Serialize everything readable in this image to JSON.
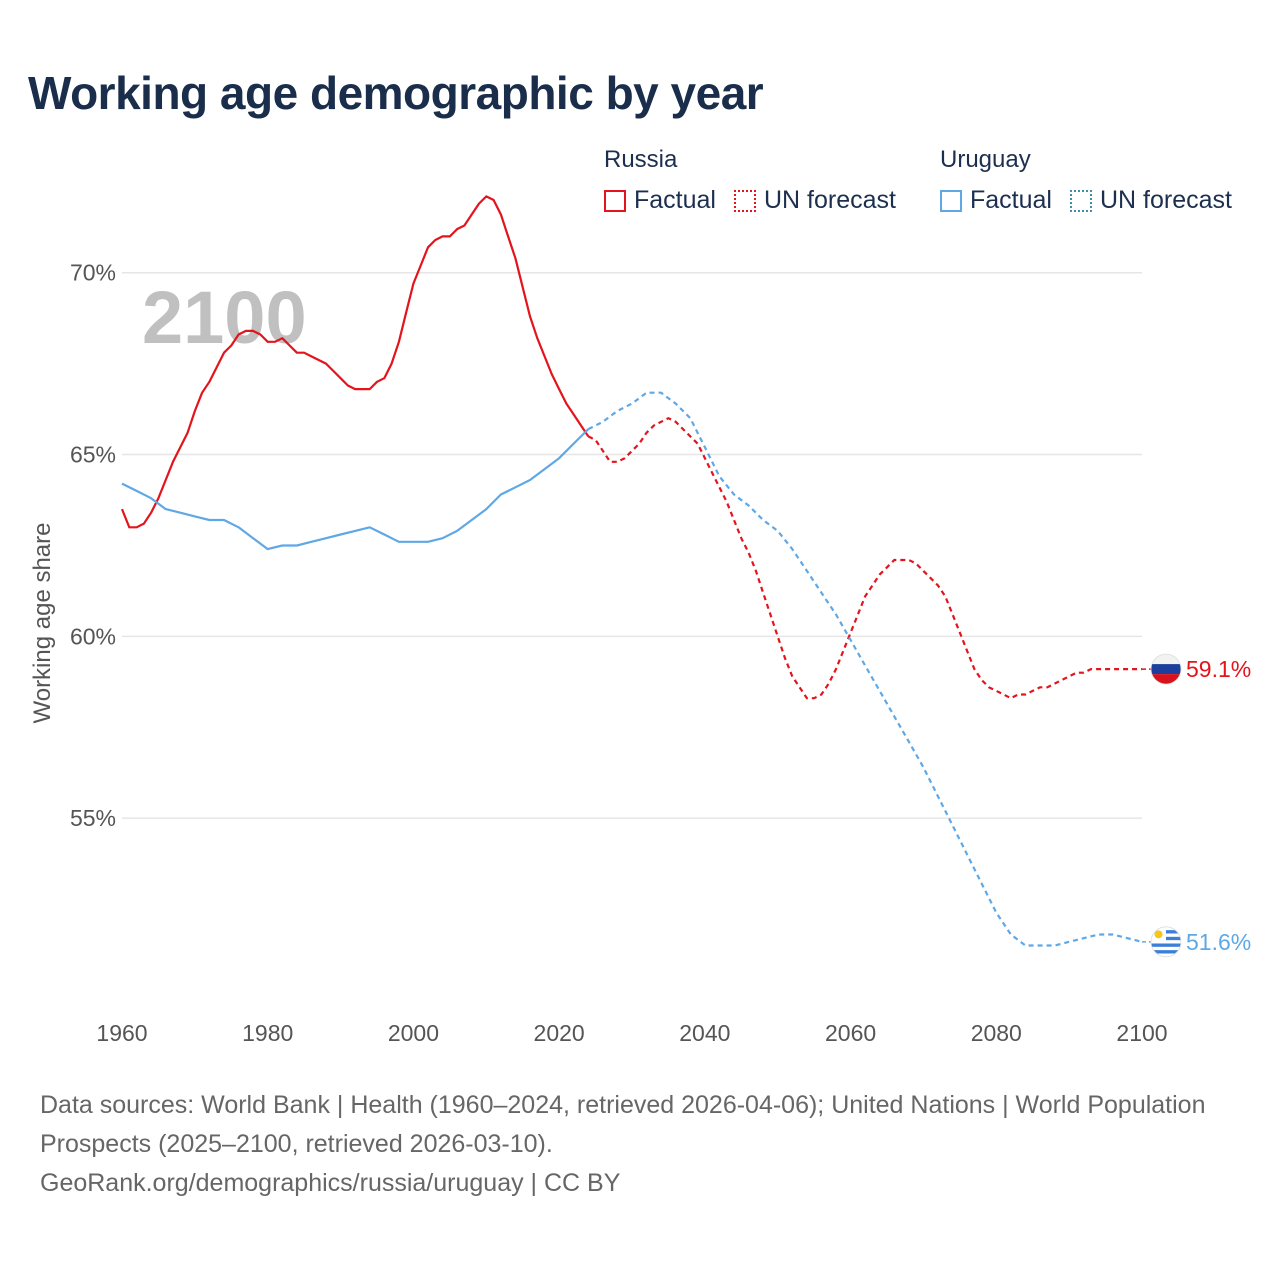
{
  "title": "Working age demographic by year",
  "legend": {
    "groups": [
      {
        "name": "Russia",
        "factual": "Factual",
        "forecast": "UN forecast"
      },
      {
        "name": "Uruguay",
        "factual": "Factual",
        "forecast": "UN forecast"
      }
    ]
  },
  "source": {
    "line1": "Data sources: World Bank | Health (1960–2024, retrieved 2026-04-06); United Nations | World Population Prospects (2025–2100, retrieved 2026-03-10).",
    "line2": "GeoRank.org/demographics/russia/uruguay | CC BY"
  },
  "colors": {
    "russia": "#e3141c",
    "uruguay": "#5fa8e6",
    "grid": "#e6e6e6",
    "year_watermark": "#c0c0c0"
  },
  "chart_data": {
    "type": "line",
    "title": "Working age demographic by year",
    "ylabel": "Working age share",
    "xlabel": "",
    "year_label": "2100",
    "xlim": [
      1960,
      2100
    ],
    "ylim": [
      50,
      72
    ],
    "x_ticks": [
      1960,
      1980,
      2000,
      2020,
      2040,
      2060,
      2080,
      2100
    ],
    "x_tick_labels": [
      "1960",
      "1980",
      "2000",
      "2020",
      "2040",
      "2060",
      "2080",
      "2100"
    ],
    "y_ticks": [
      55,
      60,
      65,
      70
    ],
    "y_tick_labels": [
      "55%",
      "60%",
      "65%",
      "70%"
    ],
    "factual_end_year": 2024,
    "series": [
      {
        "name": "Russia",
        "end_label": "59.1%",
        "points": [
          [
            1960,
            63.5
          ],
          [
            1961,
            63.0
          ],
          [
            1962,
            63.0
          ],
          [
            1963,
            63.1
          ],
          [
            1964,
            63.4
          ],
          [
            1965,
            63.8
          ],
          [
            1966,
            64.3
          ],
          [
            1967,
            64.8
          ],
          [
            1968,
            65.2
          ],
          [
            1969,
            65.6
          ],
          [
            1970,
            66.2
          ],
          [
            1971,
            66.7
          ],
          [
            1972,
            67.0
          ],
          [
            1973,
            67.4
          ],
          [
            1974,
            67.8
          ],
          [
            1975,
            68.0
          ],
          [
            1976,
            68.3
          ],
          [
            1977,
            68.4
          ],
          [
            1978,
            68.4
          ],
          [
            1979,
            68.3
          ],
          [
            1980,
            68.1
          ],
          [
            1981,
            68.1
          ],
          [
            1982,
            68.2
          ],
          [
            1983,
            68.0
          ],
          [
            1984,
            67.8
          ],
          [
            1985,
            67.8
          ],
          [
            1986,
            67.7
          ],
          [
            1987,
            67.6
          ],
          [
            1988,
            67.5
          ],
          [
            1989,
            67.3
          ],
          [
            1990,
            67.1
          ],
          [
            1991,
            66.9
          ],
          [
            1992,
            66.8
          ],
          [
            1993,
            66.8
          ],
          [
            1994,
            66.8
          ],
          [
            1995,
            67.0
          ],
          [
            1996,
            67.1
          ],
          [
            1997,
            67.5
          ],
          [
            1998,
            68.1
          ],
          [
            1999,
            68.9
          ],
          [
            2000,
            69.7
          ],
          [
            2001,
            70.2
          ],
          [
            2002,
            70.7
          ],
          [
            2003,
            70.9
          ],
          [
            2004,
            71.0
          ],
          [
            2005,
            71.0
          ],
          [
            2006,
            71.2
          ],
          [
            2007,
            71.3
          ],
          [
            2008,
            71.6
          ],
          [
            2009,
            71.9
          ],
          [
            2010,
            72.1
          ],
          [
            2011,
            72.0
          ],
          [
            2012,
            71.6
          ],
          [
            2013,
            71.0
          ],
          [
            2014,
            70.4
          ],
          [
            2015,
            69.6
          ],
          [
            2016,
            68.8
          ],
          [
            2017,
            68.2
          ],
          [
            2018,
            67.7
          ],
          [
            2019,
            67.2
          ],
          [
            2020,
            66.8
          ],
          [
            2021,
            66.4
          ],
          [
            2022,
            66.1
          ],
          [
            2023,
            65.8
          ],
          [
            2024,
            65.5
          ],
          [
            2025,
            65.4
          ],
          [
            2026,
            65.1
          ],
          [
            2027,
            64.8
          ],
          [
            2028,
            64.8
          ],
          [
            2029,
            64.9
          ],
          [
            2030,
            65.1
          ],
          [
            2031,
            65.3
          ],
          [
            2032,
            65.6
          ],
          [
            2033,
            65.8
          ],
          [
            2034,
            65.9
          ],
          [
            2035,
            66.0
          ],
          [
            2036,
            65.9
          ],
          [
            2037,
            65.7
          ],
          [
            2038,
            65.5
          ],
          [
            2039,
            65.3
          ],
          [
            2040,
            64.9
          ],
          [
            2041,
            64.5
          ],
          [
            2042,
            64.1
          ],
          [
            2043,
            63.7
          ],
          [
            2044,
            63.2
          ],
          [
            2045,
            62.7
          ],
          [
            2046,
            62.3
          ],
          [
            2047,
            61.8
          ],
          [
            2048,
            61.2
          ],
          [
            2049,
            60.6
          ],
          [
            2050,
            60.0
          ],
          [
            2051,
            59.4
          ],
          [
            2052,
            58.9
          ],
          [
            2053,
            58.6
          ],
          [
            2054,
            58.3
          ],
          [
            2055,
            58.3
          ],
          [
            2056,
            58.4
          ],
          [
            2057,
            58.7
          ],
          [
            2058,
            59.1
          ],
          [
            2059,
            59.6
          ],
          [
            2060,
            60.1
          ],
          [
            2061,
            60.6
          ],
          [
            2062,
            61.1
          ],
          [
            2063,
            61.4
          ],
          [
            2064,
            61.7
          ],
          [
            2065,
            61.9
          ],
          [
            2066,
            62.1
          ],
          [
            2067,
            62.1
          ],
          [
            2068,
            62.1
          ],
          [
            2069,
            62.0
          ],
          [
            2070,
            61.8
          ],
          [
            2071,
            61.6
          ],
          [
            2072,
            61.4
          ],
          [
            2073,
            61.1
          ],
          [
            2074,
            60.6
          ],
          [
            2075,
            60.1
          ],
          [
            2076,
            59.6
          ],
          [
            2077,
            59.1
          ],
          [
            2078,
            58.8
          ],
          [
            2079,
            58.6
          ],
          [
            2080,
            58.5
          ],
          [
            2081,
            58.4
          ],
          [
            2082,
            58.3
          ],
          [
            2083,
            58.4
          ],
          [
            2084,
            58.4
          ],
          [
            2085,
            58.5
          ],
          [
            2086,
            58.6
          ],
          [
            2087,
            58.6
          ],
          [
            2088,
            58.7
          ],
          [
            2089,
            58.8
          ],
          [
            2090,
            58.9
          ],
          [
            2091,
            59.0
          ],
          [
            2092,
            59.0
          ],
          [
            2093,
            59.1
          ],
          [
            2094,
            59.1
          ],
          [
            2095,
            59.1
          ],
          [
            2096,
            59.1
          ],
          [
            2097,
            59.1
          ],
          [
            2098,
            59.1
          ],
          [
            2099,
            59.1
          ],
          [
            2100,
            59.1
          ]
        ]
      },
      {
        "name": "Uruguay",
        "end_label": "51.6%",
        "points": [
          [
            1960,
            64.2
          ],
          [
            1962,
            64.0
          ],
          [
            1964,
            63.8
          ],
          [
            1966,
            63.5
          ],
          [
            1968,
            63.4
          ],
          [
            1970,
            63.3
          ],
          [
            1972,
            63.2
          ],
          [
            1974,
            63.2
          ],
          [
            1976,
            63.0
          ],
          [
            1978,
            62.7
          ],
          [
            1980,
            62.4
          ],
          [
            1982,
            62.5
          ],
          [
            1984,
            62.5
          ],
          [
            1986,
            62.6
          ],
          [
            1988,
            62.7
          ],
          [
            1990,
            62.8
          ],
          [
            1992,
            62.9
          ],
          [
            1994,
            63.0
          ],
          [
            1996,
            62.8
          ],
          [
            1998,
            62.6
          ],
          [
            2000,
            62.6
          ],
          [
            2002,
            62.6
          ],
          [
            2004,
            62.7
          ],
          [
            2006,
            62.9
          ],
          [
            2008,
            63.2
          ],
          [
            2010,
            63.5
          ],
          [
            2012,
            63.9
          ],
          [
            2014,
            64.1
          ],
          [
            2016,
            64.3
          ],
          [
            2018,
            64.6
          ],
          [
            2020,
            64.9
          ],
          [
            2022,
            65.3
          ],
          [
            2024,
            65.7
          ],
          [
            2026,
            65.9
          ],
          [
            2028,
            66.2
          ],
          [
            2030,
            66.4
          ],
          [
            2032,
            66.7
          ],
          [
            2034,
            66.7
          ],
          [
            2036,
            66.4
          ],
          [
            2038,
            66.0
          ],
          [
            2040,
            65.2
          ],
          [
            2042,
            64.4
          ],
          [
            2044,
            63.9
          ],
          [
            2046,
            63.6
          ],
          [
            2048,
            63.2
          ],
          [
            2050,
            62.9
          ],
          [
            2052,
            62.4
          ],
          [
            2054,
            61.8
          ],
          [
            2056,
            61.2
          ],
          [
            2058,
            60.6
          ],
          [
            2060,
            59.9
          ],
          [
            2062,
            59.2
          ],
          [
            2064,
            58.5
          ],
          [
            2066,
            57.8
          ],
          [
            2068,
            57.1
          ],
          [
            2070,
            56.4
          ],
          [
            2072,
            55.6
          ],
          [
            2074,
            54.8
          ],
          [
            2076,
            54.0
          ],
          [
            2078,
            53.2
          ],
          [
            2080,
            52.4
          ],
          [
            2082,
            51.8
          ],
          [
            2084,
            51.5
          ],
          [
            2086,
            51.5
          ],
          [
            2088,
            51.5
          ],
          [
            2090,
            51.6
          ],
          [
            2092,
            51.7
          ],
          [
            2094,
            51.8
          ],
          [
            2096,
            51.8
          ],
          [
            2098,
            51.7
          ],
          [
            2100,
            51.6
          ]
        ]
      }
    ]
  }
}
